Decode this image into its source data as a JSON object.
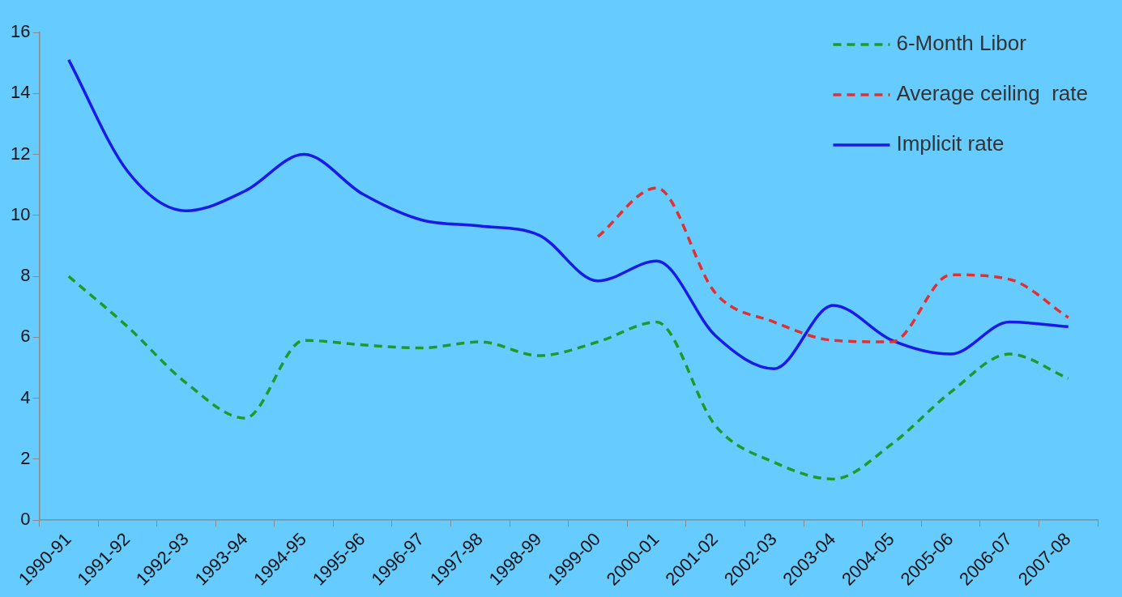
{
  "chart_data": {
    "type": "line",
    "categories": [
      "1990-91",
      "1991-92",
      "1992-93",
      "1993-94",
      "1994-95",
      "1995-96",
      "1996-97",
      "1997-98",
      "1998-99",
      "1999-00",
      "2000-01",
      "2001-02",
      "2002-03",
      "2003-04",
      "2004-05",
      "2005-06",
      "2006-07",
      "2007-08"
    ],
    "series": [
      {
        "name": "6-Month Libor",
        "color": "#1f9a2a",
        "line_style": "dashed",
        "values": [
          8.0,
          6.35,
          4.5,
          3.35,
          5.9,
          5.75,
          5.65,
          5.85,
          5.4,
          5.85,
          6.5,
          3.1,
          1.9,
          1.35,
          2.5,
          4.2,
          5.45,
          4.65
        ]
      },
      {
        "name": "Average ceiling  rate",
        "color": "#e03030",
        "line_style": "dashed",
        "values": [
          null,
          null,
          null,
          null,
          null,
          null,
          null,
          null,
          null,
          9.3,
          10.9,
          7.45,
          6.5,
          5.9,
          5.85,
          8.05,
          7.9,
          6.65
        ]
      },
      {
        "name": "Implicit rate",
        "color": "#1a1ae6",
        "line_style": "solid",
        "values": [
          15.1,
          11.45,
          10.15,
          10.8,
          12.0,
          10.7,
          9.85,
          9.65,
          9.35,
          7.85,
          8.5,
          6.05,
          4.97,
          7.05,
          5.9,
          5.45,
          6.5,
          6.35
        ]
      }
    ],
    "ylim": [
      0,
      16
    ],
    "yticks": [
      0,
      2,
      4,
      6,
      8,
      10,
      12,
      14,
      16
    ],
    "grid": false,
    "legend": "top right",
    "marker": "none"
  }
}
